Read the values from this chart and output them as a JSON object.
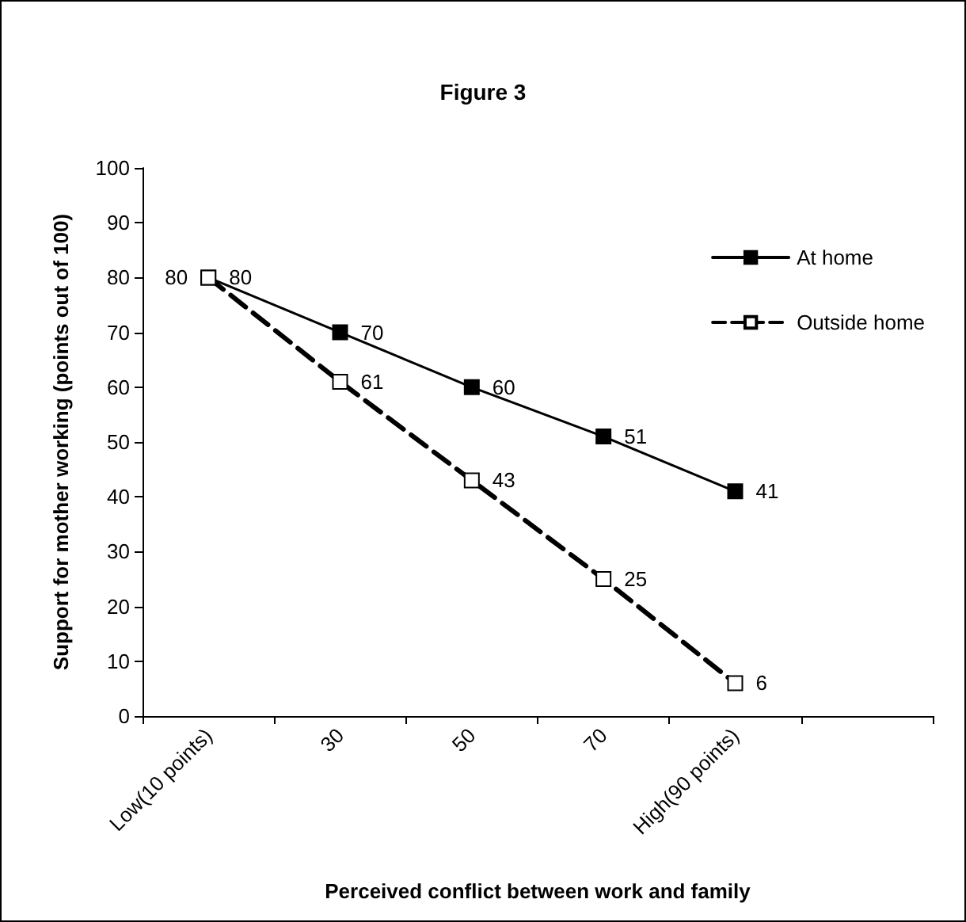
{
  "chart_data": {
    "type": "line",
    "title": "Figure 3",
    "xlabel": "Perceived conflict between work and family",
    "ylabel": "Support for mother working (points out of 100)",
    "categories": [
      "Low(10 points)",
      "30",
      "50",
      "70",
      "High(90 points)",
      null
    ],
    "series": [
      {
        "name": "At home",
        "color": "#000000",
        "values": [
          80,
          70,
          60,
          51,
          41,
          null
        ],
        "line_style": "solid"
      },
      {
        "name": "Outside home",
        "color": "#000000",
        "values": [
          80,
          61,
          43,
          25,
          6,
          null
        ],
        "line_style": "dashed"
      }
    ],
    "ylim": [
      0,
      100
    ],
    "yticks": [
      0,
      10,
      20,
      30,
      40,
      50,
      60,
      70,
      80,
      90,
      100
    ],
    "grid": false,
    "legend": "top right",
    "marker": "square",
    "data_labels": true
  }
}
